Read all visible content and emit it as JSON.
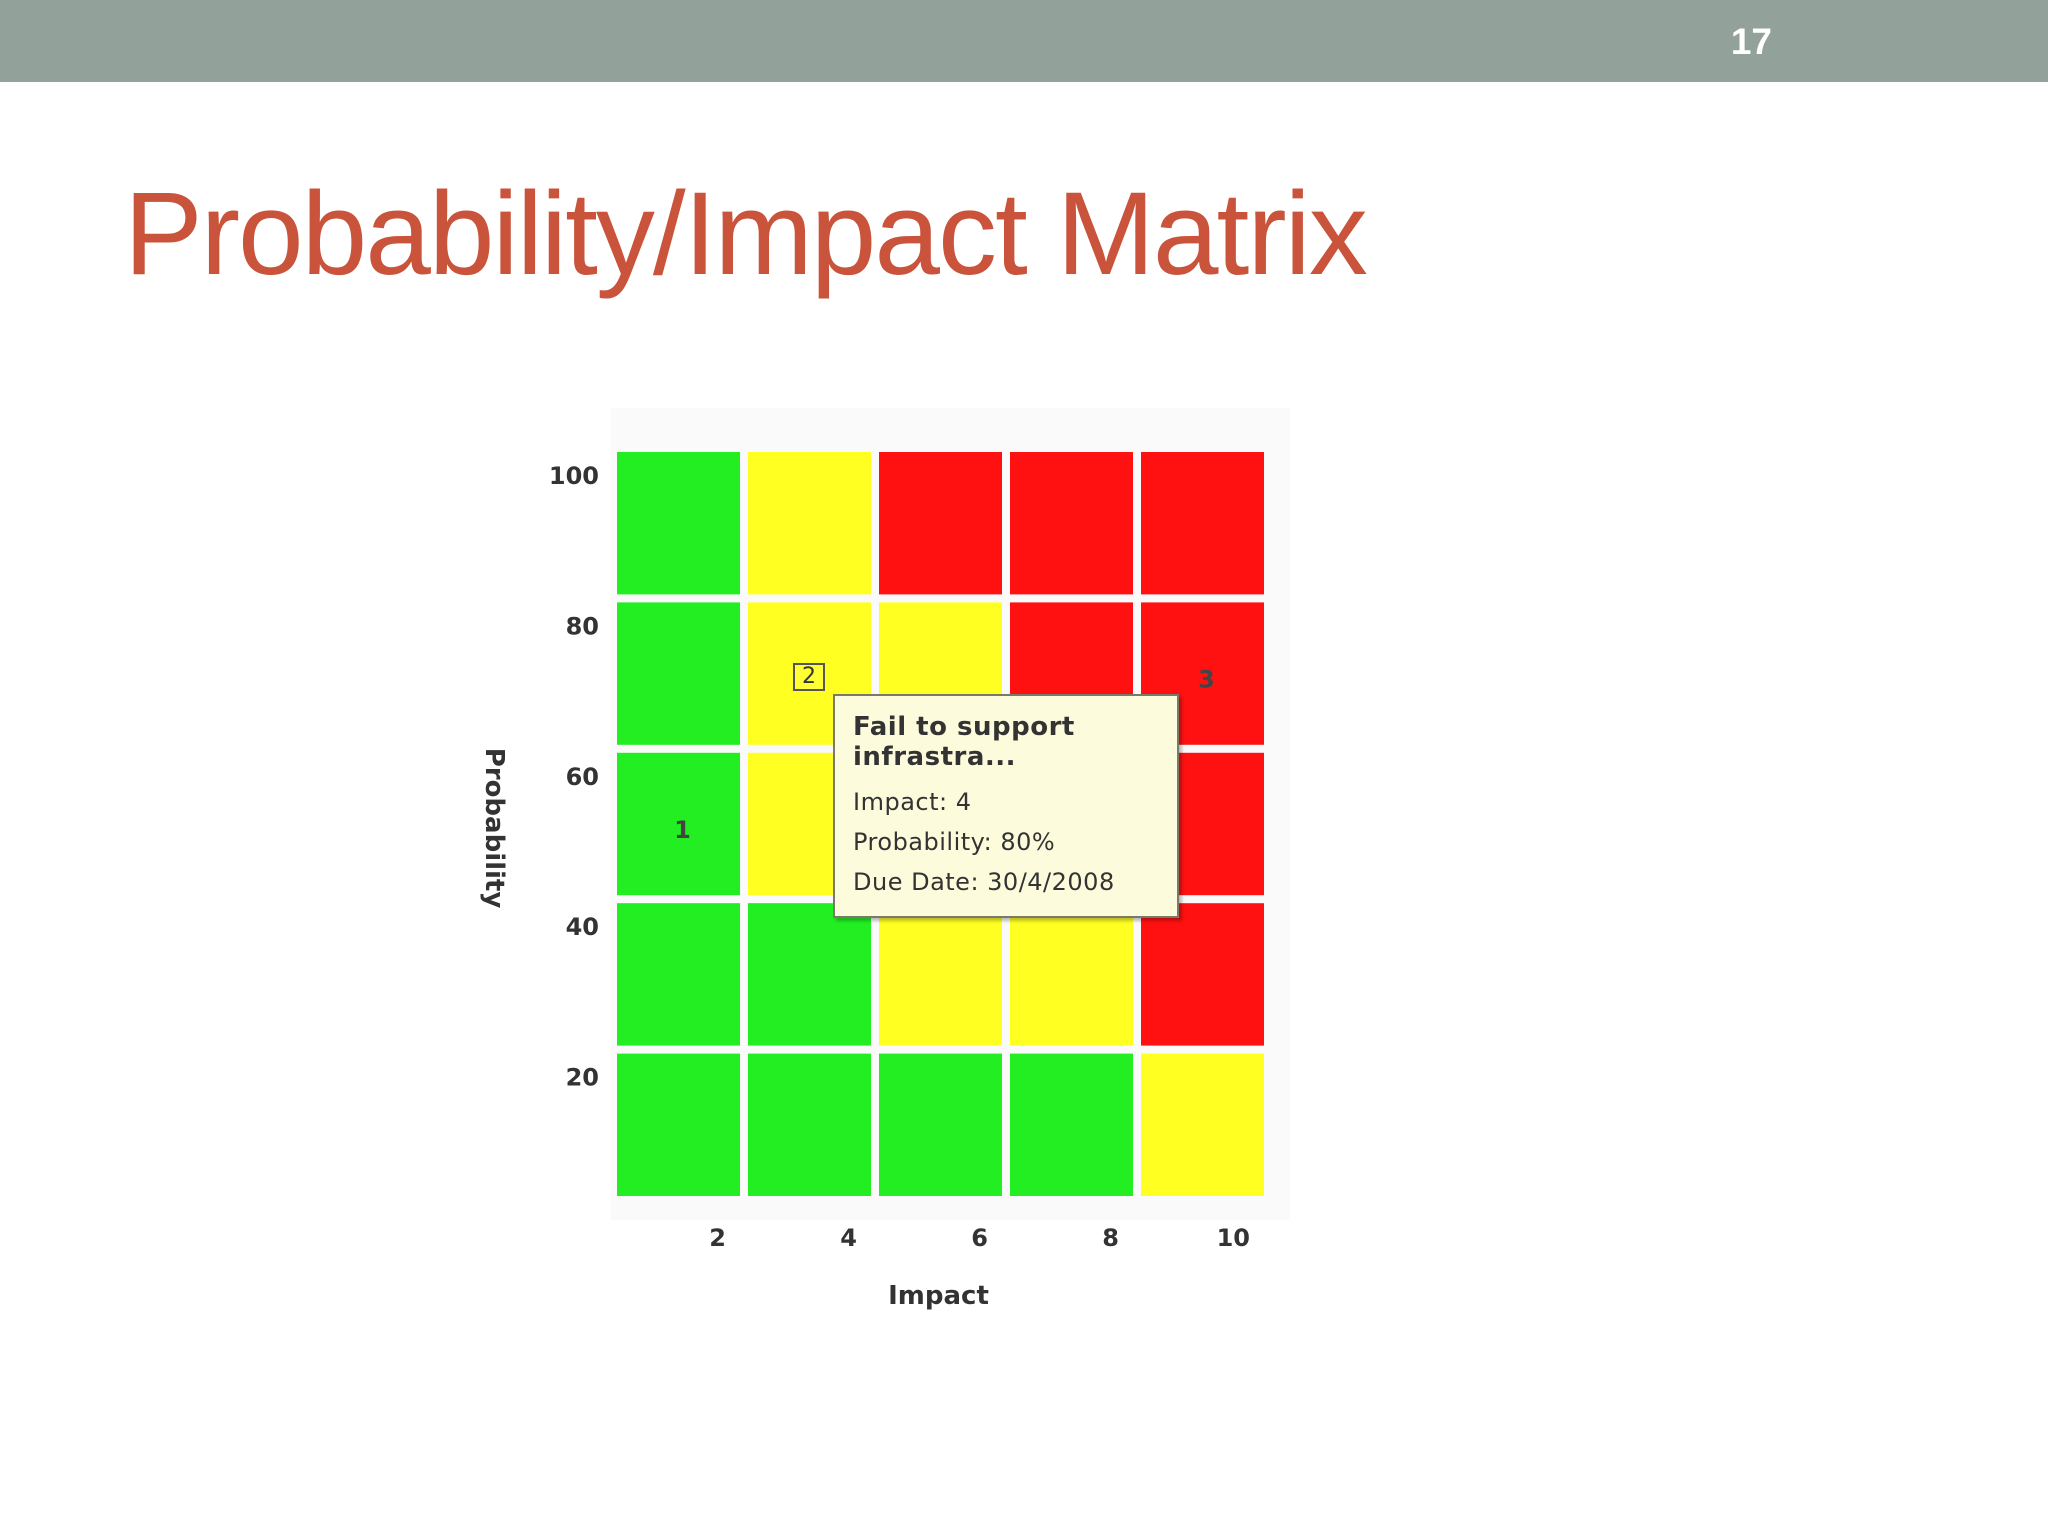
{
  "slide": {
    "number": "17",
    "title": "Probability/Impact Matrix"
  },
  "colors": {
    "top_bar": "#92a29a",
    "title": "#c9533b",
    "green": "#22ee22",
    "yellow": "#ffff22",
    "red": "#ff1111",
    "tooltip_bg": "#fcfcdc"
  },
  "chart_data": {
    "type": "heatmap",
    "xlabel": "Impact",
    "ylabel": "Probability",
    "x_ticks": [
      "2",
      "4",
      "6",
      "8",
      "10"
    ],
    "y_ticks": [
      "100",
      "80",
      "60",
      "40",
      "20"
    ],
    "xlim": [
      0,
      10
    ],
    "ylim": [
      0,
      100
    ],
    "rows_top_to_bottom": [
      [
        "green",
        "yellow",
        "red",
        "red",
        "red"
      ],
      [
        "green",
        "yellow",
        "yellow",
        "red",
        "red"
      ],
      [
        "green",
        "yellow",
        "yellow",
        "red",
        "red"
      ],
      [
        "green",
        "green",
        "yellow",
        "yellow",
        "red"
      ],
      [
        "green",
        "green",
        "green",
        "green",
        "yellow"
      ]
    ],
    "markers": [
      {
        "label": "1",
        "impact": 1,
        "probability": 40
      },
      {
        "label": "2",
        "impact": 3,
        "probability": 80
      },
      {
        "label": "3",
        "impact": 9,
        "probability": 60
      }
    ],
    "tooltip": {
      "title_line1": "Fail to support",
      "title_line2": "infrastra...",
      "impact": "Impact: 4",
      "probability": "Probability: 80%",
      "due_date": "Due Date: 30/4/2008"
    }
  }
}
